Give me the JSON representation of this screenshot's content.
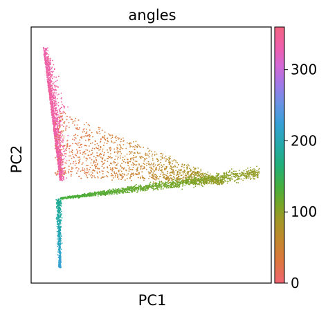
{
  "chart_data": {
    "type": "scatter",
    "title": "angles",
    "xlabel": "PC1",
    "ylabel": "PC2",
    "x_ticks": false,
    "y_ticks": false,
    "grid": false,
    "colorbar": {
      "ticks": [
        "0",
        "100",
        "200",
        "300"
      ],
      "tick_values": [
        0,
        100,
        200,
        300
      ],
      "range": [
        0,
        360
      ],
      "position": "right",
      "colormap": "hue: 0 red-orange → 60 orange-brown → 100 olive → 130 green → 190 teal → 230 blue → 280 violet → 330 pink"
    },
    "series": [
      {
        "structure": "embedding with a vertical stem and a horizontal branch",
        "segments": [
          {
            "part": "upper stem",
            "x_range": [
              0.03,
              0.1
            ],
            "y_range": [
              0.55,
              0.93
            ],
            "angle_range": [
              320,
              350
            ]
          },
          {
            "part": "diffuse upper wedge",
            "x_range": [
              0.1,
              0.8
            ],
            "y_range": [
              0.35,
              0.7
            ],
            "angle_range": [
              20,
              90
            ]
          },
          {
            "part": "horizontal branch",
            "x_range": [
              0.12,
              0.95
            ],
            "y_range": [
              0.3,
              0.42
            ],
            "angle_range": [
              90,
              130
            ]
          },
          {
            "part": "lower stem",
            "x_range": [
              0.1,
              0.14
            ],
            "y_range": [
              0.06,
              0.3
            ],
            "angle_range": [
              180,
              230
            ]
          }
        ]
      }
    ]
  }
}
